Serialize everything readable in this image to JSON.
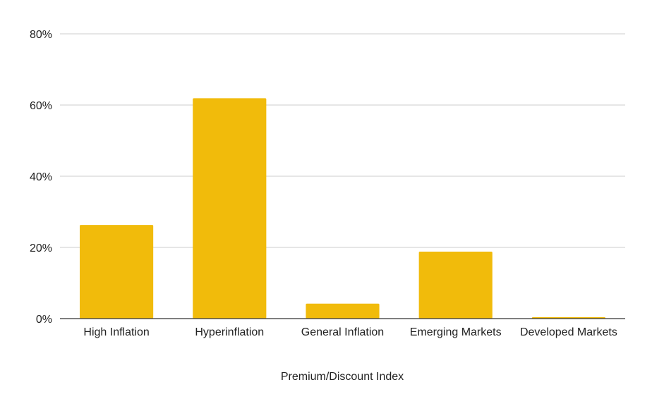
{
  "chart_data": {
    "type": "bar",
    "title": "",
    "xlabel": "Premium/Discount Index",
    "ylabel": "",
    "ylim": [
      0,
      0.8
    ],
    "yticks": [
      {
        "value": 0,
        "label": "0%"
      },
      {
        "value": 0.2,
        "label": "20%"
      },
      {
        "value": 0.4,
        "label": "40%"
      },
      {
        "value": 0.6,
        "label": "60%"
      },
      {
        "value": 0.8,
        "label": "80%"
      }
    ],
    "categories": [
      "High Inflation",
      "Hyperinflation",
      "General Inflation",
      "Emerging Markets",
      "Developed Markets"
    ],
    "values": [
      0.263,
      0.619,
      0.042,
      0.188,
      0.004
    ],
    "grid": true,
    "legend": "none",
    "bar_color": "#F1BB0B",
    "grid_color": "#CCCCCC",
    "axis_color": "#333333"
  }
}
